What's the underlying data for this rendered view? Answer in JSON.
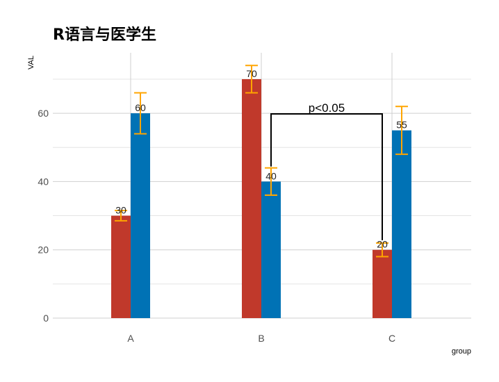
{
  "chart_data": {
    "type": "bar",
    "title": "R语言与医学生",
    "xlabel": "group",
    "ylabel": "VAL",
    "categories": [
      "A",
      "B",
      "C"
    ],
    "ylim": [
      0,
      70
    ],
    "yticks": [
      0,
      20,
      40,
      60
    ],
    "grid": true,
    "series": [
      {
        "color": "#C0392B",
        "values": [
          30,
          70,
          20
        ],
        "error": [
          1.5,
          4,
          2
        ]
      },
      {
        "color": "#0072B5",
        "values": [
          60,
          40,
          55
        ],
        "error": [
          6,
          4,
          7
        ]
      }
    ],
    "error_bar_color": "#FFA500",
    "annotation": {
      "text": "p<0.05",
      "from": {
        "category": "B",
        "series": 1
      },
      "to": {
        "category": "C",
        "series": 0
      }
    }
  }
}
